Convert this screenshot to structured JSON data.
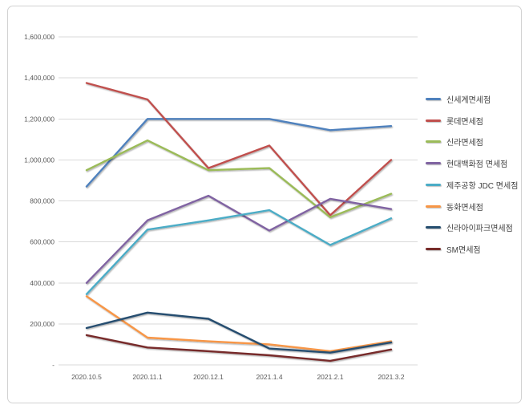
{
  "chart_data": {
    "type": "line",
    "title": "",
    "xlabel": "",
    "ylabel": "",
    "categories": [
      "2020.10.5",
      "2020.11.1",
      "2020.12.1",
      "2021.1.4",
      "2021.2.1",
      "2021.3.2"
    ],
    "series": [
      {
        "name": "신세계면세점",
        "color": "#4f81bd",
        "values": [
          870000,
          1200000,
          1200000,
          1200000,
          1145000,
          1165000
        ]
      },
      {
        "name": "롯데면세점",
        "color": "#c0504d",
        "values": [
          1375000,
          1295000,
          960000,
          1070000,
          730000,
          1000000
        ]
      },
      {
        "name": "신라면세점",
        "color": "#9bbb59",
        "values": [
          950000,
          1095000,
          950000,
          960000,
          720000,
          835000
        ]
      },
      {
        "name": "현대백화점 면세점",
        "color": "#8064a2",
        "values": [
          400000,
          705000,
          825000,
          655000,
          810000,
          760000
        ]
      },
      {
        "name": "제주공항 JDC 면세점",
        "color": "#4bacc6",
        "values": [
          345000,
          660000,
          705000,
          755000,
          585000,
          715000
        ]
      },
      {
        "name": "동화면세점",
        "color": "#f79646",
        "values": [
          335000,
          133000,
          115000,
          100000,
          67000,
          115000
        ]
      },
      {
        "name": "신라아이파크면세점",
        "color": "#254e6f",
        "values": [
          180000,
          255000,
          225000,
          80000,
          60000,
          110000
        ]
      },
      {
        "name": "SM면세점",
        "color": "#772c2a",
        "values": [
          145000,
          85000,
          67000,
          47000,
          20000,
          75000
        ]
      }
    ],
    "y_axis": {
      "min": 0,
      "max": 1600000,
      "step": 200000,
      "zero_label": "-"
    },
    "grid": true,
    "legend_position": "right"
  }
}
